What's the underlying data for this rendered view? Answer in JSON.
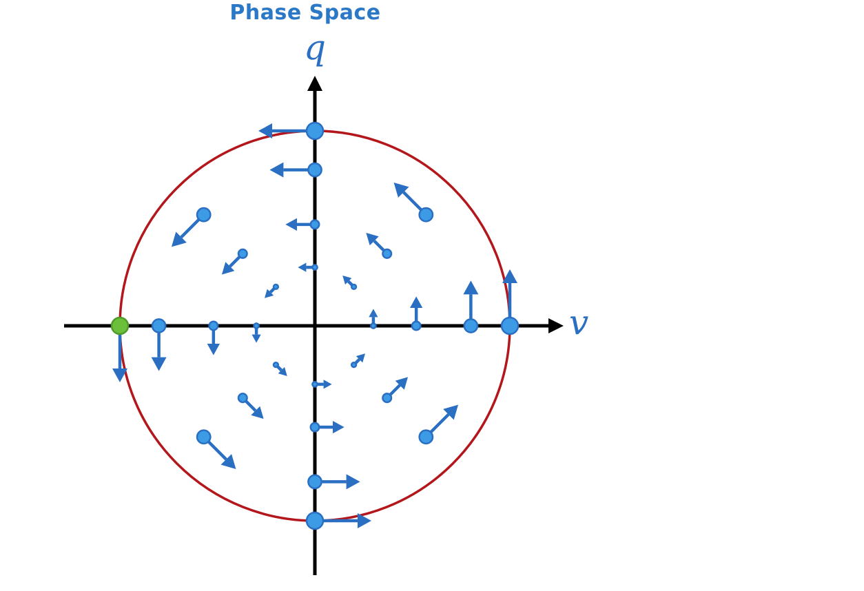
{
  "title": "Phase Space",
  "axes": {
    "x_label": "v",
    "y_label": "q"
  },
  "colors": {
    "title": "#2a78c6",
    "axis": "#000000",
    "circle": "#b3161b",
    "arrow": "#2a6fc2",
    "dot_fill": "#3d9be6",
    "highlight_dot": "#6cbf3a"
  },
  "vector_field": [
    {
      "v": 0,
      "q": 1.0
    },
    {
      "v": 0,
      "q": 0.8
    },
    {
      "v": 0,
      "q": 0.52
    },
    {
      "v": 0,
      "q": 0.3
    },
    {
      "v": 0,
      "q": -0.3
    },
    {
      "v": 0,
      "q": -0.52
    },
    {
      "v": 0,
      "q": -0.8
    },
    {
      "v": 0,
      "q": -1.0
    },
    {
      "v": -1.0,
      "q": 0
    },
    {
      "v": -0.8,
      "q": 0
    },
    {
      "v": -0.52,
      "q": 0
    },
    {
      "v": -0.3,
      "q": 0
    },
    {
      "v": 0.3,
      "q": 0
    },
    {
      "v": 0.52,
      "q": 0
    },
    {
      "v": 0.8,
      "q": 0
    },
    {
      "v": 1.0,
      "q": 0
    },
    {
      "v": 0.57,
      "q": 0.57
    },
    {
      "v": 0.37,
      "q": 0.37
    },
    {
      "v": 0.2,
      "q": 0.2
    },
    {
      "v": -0.57,
      "q": 0.57
    },
    {
      "v": -0.37,
      "q": 0.37
    },
    {
      "v": -0.2,
      "q": 0.2
    },
    {
      "v": -0.57,
      "q": -0.57
    },
    {
      "v": -0.37,
      "q": -0.37
    },
    {
      "v": -0.2,
      "q": -0.2
    },
    {
      "v": 0.57,
      "q": -0.57
    },
    {
      "v": 0.37,
      "q": -0.37
    },
    {
      "v": 0.2,
      "q": -0.2
    }
  ],
  "highlight_point": {
    "v": -1.0,
    "q": 0
  }
}
